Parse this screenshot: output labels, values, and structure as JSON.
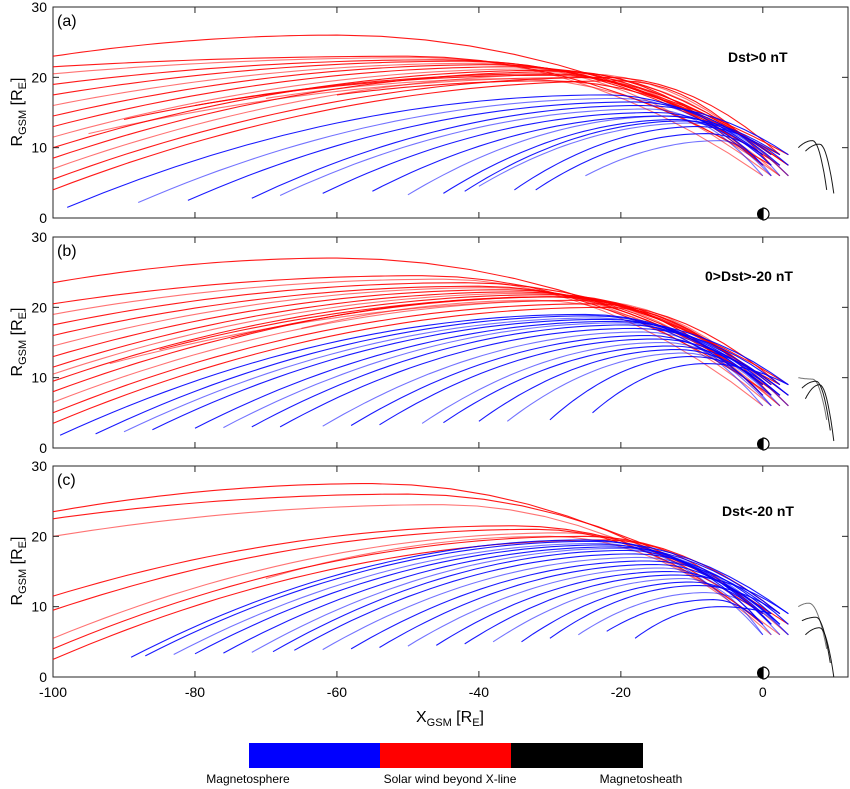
{
  "chart_data": [
    {
      "type": "line",
      "panel_label": "(a)",
      "annotation": "Dst>0 nT",
      "xlim": [
        -100,
        12
      ],
      "ylim": [
        0,
        30
      ],
      "yticks": [
        "0",
        "10",
        "20",
        "30"
      ],
      "ylabel": {
        "main": "R",
        "sub": "GSM",
        "unit_open": " [R",
        "unit_sub": "E",
        "unit_close": "]"
      },
      "series_groups": [
        {
          "category": "Solar wind beyond X-line",
          "curves": [
            {
              "x0": -100,
              "y0": 4.0,
              "peak_x": -20,
              "peak_y": 19.5
            },
            {
              "x0": -100,
              "y0": 5.5,
              "peak_x": -22,
              "peak_y": 20.0
            },
            {
              "x0": -100,
              "y0": 7.0,
              "peak_x": -25,
              "peak_y": 20.5
            },
            {
              "x0": -100,
              "y0": 8.5,
              "peak_x": -28,
              "peak_y": 20.8
            },
            {
              "x0": -100,
              "y0": 10.0,
              "peak_x": -30,
              "peak_y": 21.0
            },
            {
              "x0": -100,
              "y0": 11.5,
              "peak_x": -32,
              "peak_y": 21.2
            },
            {
              "x0": -100,
              "y0": 13.0,
              "peak_x": -35,
              "peak_y": 21.5
            },
            {
              "x0": -100,
              "y0": 14.5,
              "peak_x": -38,
              "peak_y": 21.8
            },
            {
              "x0": -100,
              "y0": 16.0,
              "peak_x": -40,
              "peak_y": 22.0
            },
            {
              "x0": -100,
              "y0": 17.5,
              "peak_x": -42,
              "peak_y": 22.3
            },
            {
              "x0": -100,
              "y0": 19.0,
              "peak_x": -45,
              "peak_y": 22.5
            },
            {
              "x0": -100,
              "y0": 20.5,
              "peak_x": -48,
              "peak_y": 22.8
            },
            {
              "x0": -100,
              "y0": 21.5,
              "peak_x": -50,
              "peak_y": 23.0
            },
            {
              "x0": -100,
              "y0": 23.0,
              "peak_x": -60,
              "peak_y": 26.0
            },
            {
              "x0": -95,
              "y0": 12.0,
              "peak_x": -25,
              "peak_y": 20.0
            },
            {
              "x0": -90,
              "y0": 14.0,
              "peak_x": -30,
              "peak_y": 20.5
            },
            {
              "x0": -80,
              "y0": 16.0,
              "peak_x": -30,
              "peak_y": 20.3
            },
            {
              "x0": -70,
              "y0": 17.0,
              "peak_x": -35,
              "peak_y": 19.8
            },
            {
              "x0": -60,
              "y0": 17.5,
              "peak_x": -30,
              "peak_y": 19.5
            }
          ]
        },
        {
          "category": "Magnetosphere",
          "curves": [
            {
              "x0": -98,
              "y0": 1.5,
              "peak_x": -22,
              "peak_y": 17.5
            },
            {
              "x0": -88,
              "y0": 2.2,
              "peak_x": -20,
              "peak_y": 17.0
            },
            {
              "x0": -81,
              "y0": 2.5,
              "peak_x": -18,
              "peak_y": 16.5
            },
            {
              "x0": -72,
              "y0": 2.8,
              "peak_x": -17,
              "peak_y": 16.0
            },
            {
              "x0": -68,
              "y0": 3.2,
              "peak_x": -16,
              "peak_y": 15.5
            },
            {
              "x0": -62,
              "y0": 3.5,
              "peak_x": -15,
              "peak_y": 15.0
            },
            {
              "x0": -55,
              "y0": 3.8,
              "peak_x": -14,
              "peak_y": 14.5
            },
            {
              "x0": -50,
              "y0": 3.3,
              "peak_x": -13,
              "peak_y": 14.5
            },
            {
              "x0": -45,
              "y0": 3.5,
              "peak_x": -12,
              "peak_y": 14.0
            },
            {
              "x0": -42,
              "y0": 3.8,
              "peak_x": -11,
              "peak_y": 13.8
            },
            {
              "x0": -40,
              "y0": 4.5,
              "peak_x": -10,
              "peak_y": 13.5
            },
            {
              "x0": -35,
              "y0": 4.0,
              "peak_x": -9,
              "peak_y": 13.0
            },
            {
              "x0": -32,
              "y0": 4.0,
              "peak_x": -8,
              "peak_y": 12.0
            },
            {
              "x0": -25,
              "y0": 6.0,
              "peak_x": -6,
              "peak_y": 11.0
            }
          ]
        },
        {
          "category": "Magnetosheath",
          "curves": [
            {
              "x0": 5,
              "y0": 10,
              "peak_x": 7,
              "peak_y": 11
            },
            {
              "x0": 6,
              "y0": 9.5,
              "peak_x": 8,
              "peak_y": 10.5
            }
          ]
        }
      ]
    },
    {
      "type": "line",
      "panel_label": "(b)",
      "annotation": "0>Dst>-20 nT",
      "xlim": [
        -100,
        12
      ],
      "ylim": [
        0,
        30
      ],
      "yticks": [
        "0",
        "10",
        "20",
        "30"
      ],
      "ylabel": {
        "main": "R",
        "sub": "GSM",
        "unit_open": " [R",
        "unit_sub": "E",
        "unit_close": "]"
      },
      "series_groups": [
        {
          "category": "Solar wind beyond X-line",
          "curves": [
            {
              "x0": -100,
              "y0": 3.5,
              "peak_x": -22,
              "peak_y": 20.0
            },
            {
              "x0": -100,
              "y0": 5.0,
              "peak_x": -24,
              "peak_y": 20.5
            },
            {
              "x0": -100,
              "y0": 6.5,
              "peak_x": -26,
              "peak_y": 21.0
            },
            {
              "x0": -100,
              "y0": 8.0,
              "peak_x": -28,
              "peak_y": 21.5
            },
            {
              "x0": -100,
              "y0": 9.5,
              "peak_x": -30,
              "peak_y": 21.8
            },
            {
              "x0": -100,
              "y0": 10.5,
              "peak_x": -32,
              "peak_y": 22.0
            },
            {
              "x0": -100,
              "y0": 11.5,
              "peak_x": -34,
              "peak_y": 22.2
            },
            {
              "x0": -100,
              "y0": 13.0,
              "peak_x": -36,
              "peak_y": 22.5
            },
            {
              "x0": -100,
              "y0": 14.5,
              "peak_x": -38,
              "peak_y": 22.8
            },
            {
              "x0": -100,
              "y0": 16.0,
              "peak_x": -40,
              "peak_y": 23.0
            },
            {
              "x0": -100,
              "y0": 17.5,
              "peak_x": -42,
              "peak_y": 23.5
            },
            {
              "x0": -100,
              "y0": 19.0,
              "peak_x": -45,
              "peak_y": 24.0
            },
            {
              "x0": -100,
              "y0": 20.5,
              "peak_x": -48,
              "peak_y": 24.5
            },
            {
              "x0": -100,
              "y0": 23.5,
              "peak_x": -60,
              "peak_y": 27.0
            },
            {
              "x0": -92,
              "y0": 12.0,
              "peak_x": -25,
              "peak_y": 21.0
            },
            {
              "x0": -85,
              "y0": 14.0,
              "peak_x": -28,
              "peak_y": 21.5
            },
            {
              "x0": -75,
              "y0": 15.5,
              "peak_x": -30,
              "peak_y": 21.5
            },
            {
              "x0": -65,
              "y0": 17.0,
              "peak_x": -32,
              "peak_y": 21.0
            }
          ]
        },
        {
          "category": "Magnetosphere",
          "curves": [
            {
              "x0": -99,
              "y0": 1.8,
              "peak_x": -25,
              "peak_y": 19.0
            },
            {
              "x0": -94,
              "y0": 2.0,
              "peak_x": -24,
              "peak_y": 18.8
            },
            {
              "x0": -90,
              "y0": 2.3,
              "peak_x": -23,
              "peak_y": 18.5
            },
            {
              "x0": -86,
              "y0": 2.6,
              "peak_x": -22,
              "peak_y": 18.3
            },
            {
              "x0": -80,
              "y0": 2.8,
              "peak_x": -21,
              "peak_y": 18.0
            },
            {
              "x0": -76,
              "y0": 2.9,
              "peak_x": -20,
              "peak_y": 17.8
            },
            {
              "x0": -72,
              "y0": 3.0,
              "peak_x": -19,
              "peak_y": 17.5
            },
            {
              "x0": -68,
              "y0": 3.0,
              "peak_x": -18,
              "peak_y": 17.0
            },
            {
              "x0": -62,
              "y0": 3.1,
              "peak_x": -17,
              "peak_y": 16.5
            },
            {
              "x0": -58,
              "y0": 3.2,
              "peak_x": -16,
              "peak_y": 16.0
            },
            {
              "x0": -54,
              "y0": 3.3,
              "peak_x": -15,
              "peak_y": 15.5
            },
            {
              "x0": -48,
              "y0": 3.5,
              "peak_x": -14,
              "peak_y": 15.0
            },
            {
              "x0": -45,
              "y0": 3.6,
              "peak_x": -13,
              "peak_y": 14.5
            },
            {
              "x0": -40,
              "y0": 3.8,
              "peak_x": -12,
              "peak_y": 14.0
            },
            {
              "x0": -36,
              "y0": 3.8,
              "peak_x": -11,
              "peak_y": 13.5
            },
            {
              "x0": -30,
              "y0": 4.0,
              "peak_x": -10,
              "peak_y": 13.0
            },
            {
              "x0": -24,
              "y0": 5.0,
              "peak_x": -8,
              "peak_y": 12.0
            }
          ]
        },
        {
          "category": "Magnetosheath",
          "curves": [
            {
              "x0": 5,
              "y0": 10,
              "peak_x": 7,
              "peak_y": 9.8
            },
            {
              "x0": 5.5,
              "y0": 8.5,
              "peak_x": 7.5,
              "peak_y": 9.5
            },
            {
              "x0": 6,
              "y0": 7,
              "peak_x": 8,
              "peak_y": 9.0
            }
          ]
        }
      ]
    },
    {
      "type": "line",
      "panel_label": "(c)",
      "annotation": "Dst<-20 nT",
      "xlim": [
        -100,
        12
      ],
      "ylim": [
        0,
        30
      ],
      "yticks": [
        "0",
        "10",
        "20",
        "30"
      ],
      "xticks": [
        "-100",
        "-80",
        "-60",
        "-40",
        "-20",
        "0"
      ],
      "ylabel": {
        "main": "R",
        "sub": "GSM",
        "unit_open": " [R",
        "unit_sub": "E",
        "unit_close": "]"
      },
      "xlabel": {
        "main": "X",
        "sub": "GSM",
        "unit_open": " [R",
        "unit_sub": "E",
        "unit_close": "]"
      },
      "series_groups": [
        {
          "category": "Solar wind beyond X-line",
          "curves": [
            {
              "x0": -100,
              "y0": 2.5,
              "peak_x": -22,
              "peak_y": 19.5
            },
            {
              "x0": -100,
              "y0": 4.0,
              "peak_x": -25,
              "peak_y": 20.0
            },
            {
              "x0": -100,
              "y0": 5.5,
              "peak_x": -28,
              "peak_y": 20.5
            },
            {
              "x0": -100,
              "y0": 9.5,
              "peak_x": -32,
              "peak_y": 21.0
            },
            {
              "x0": -100,
              "y0": 11.5,
              "peak_x": -35,
              "peak_y": 21.5
            },
            {
              "x0": -100,
              "y0": 20.0,
              "peak_x": -45,
              "peak_y": 24.5
            },
            {
              "x0": -100,
              "y0": 22.5,
              "peak_x": -50,
              "peak_y": 26.0
            },
            {
              "x0": -100,
              "y0": 23.5,
              "peak_x": -55,
              "peak_y": 27.5
            },
            {
              "x0": -70,
              "y0": 14.0,
              "peak_x": -30,
              "peak_y": 20.0
            }
          ]
        },
        {
          "category": "Magnetosphere",
          "curves": [
            {
              "x0": -89,
              "y0": 2.8,
              "peak_x": -25,
              "peak_y": 19.5
            },
            {
              "x0": -87,
              "y0": 3.0,
              "peak_x": -24,
              "peak_y": 19.3
            },
            {
              "x0": -83,
              "y0": 3.2,
              "peak_x": -23,
              "peak_y": 19.0
            },
            {
              "x0": -80,
              "y0": 3.3,
              "peak_x": -22,
              "peak_y": 18.8
            },
            {
              "x0": -76,
              "y0": 3.4,
              "peak_x": -21,
              "peak_y": 18.5
            },
            {
              "x0": -72,
              "y0": 3.5,
              "peak_x": -20,
              "peak_y": 18.3
            },
            {
              "x0": -69,
              "y0": 3.6,
              "peak_x": -19,
              "peak_y": 18.0
            },
            {
              "x0": -66,
              "y0": 3.8,
              "peak_x": -18,
              "peak_y": 17.5
            },
            {
              "x0": -62,
              "y0": 3.9,
              "peak_x": -17,
              "peak_y": 17.0
            },
            {
              "x0": -58,
              "y0": 4.0,
              "peak_x": -16,
              "peak_y": 16.5
            },
            {
              "x0": -54,
              "y0": 4.2,
              "peak_x": -15,
              "peak_y": 16.0
            },
            {
              "x0": -50,
              "y0": 4.4,
              "peak_x": -14,
              "peak_y": 15.5
            },
            {
              "x0": -46,
              "y0": 4.5,
              "peak_x": -13,
              "peak_y": 15.0
            },
            {
              "x0": -42,
              "y0": 4.7,
              "peak_x": -12,
              "peak_y": 14.5
            },
            {
              "x0": -38,
              "y0": 5.0,
              "peak_x": -11,
              "peak_y": 14.0
            },
            {
              "x0": -34,
              "y0": 5.0,
              "peak_x": -10,
              "peak_y": 13.5
            },
            {
              "x0": -30,
              "y0": 5.5,
              "peak_x": -9,
              "peak_y": 13.0
            },
            {
              "x0": -26,
              "y0": 6.0,
              "peak_x": -8,
              "peak_y": 12.0
            },
            {
              "x0": -22,
              "y0": 6.5,
              "peak_x": -7,
              "peak_y": 11.0
            },
            {
              "x0": -18,
              "y0": 5.5,
              "peak_x": -6,
              "peak_y": 10.0
            }
          ]
        },
        {
          "category": "Magnetosheath",
          "curves": [
            {
              "x0": 5,
              "y0": 10,
              "peak_x": 6.5,
              "peak_y": 10.5
            },
            {
              "x0": 5.5,
              "y0": 8,
              "peak_x": 7.5,
              "peak_y": 8.5
            },
            {
              "x0": 6,
              "y0": 6,
              "peak_x": 8,
              "peak_y": 7.0
            }
          ]
        }
      ]
    }
  ],
  "colorbar": {
    "segments": [
      {
        "label": "Magnetosphere",
        "color": "#0000ff"
      },
      {
        "label": "Solar wind beyond X-line",
        "color": "#ff0000"
      },
      {
        "label": "Magnetosheath",
        "color": "#000000"
      }
    ]
  }
}
